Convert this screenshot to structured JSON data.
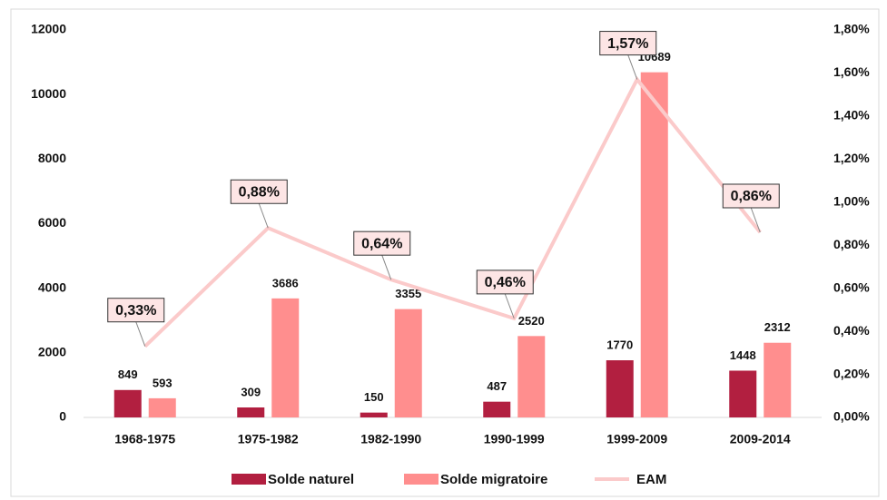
{
  "chart_data": {
    "type": "bar",
    "categories": [
      "1968-1975",
      "1975-1982",
      "1982-1990",
      "1990-1999",
      "1999-2009",
      "2009-2014"
    ],
    "series": [
      {
        "name": "Solde naturel",
        "color": "#b21f40",
        "values": [
          849,
          309,
          150,
          487,
          1770,
          1448
        ]
      },
      {
        "name": "Solde migratoire",
        "color": "#ff8e8e",
        "values": [
          593,
          3686,
          3355,
          2520,
          10689,
          2312
        ]
      },
      {
        "name": "EAM",
        "color": "#fbcaca",
        "type": "line",
        "axis": "y2",
        "values": [
          0.33,
          0.88,
          0.64,
          0.46,
          1.57,
          0.86
        ],
        "value_labels": [
          "0,33%",
          "0,88%",
          "0,64%",
          "0,46%",
          "1,57%",
          "0,86%"
        ]
      }
    ],
    "ylim": [
      0,
      12000
    ],
    "yticks": [
      0,
      2000,
      4000,
      6000,
      8000,
      10000,
      12000
    ],
    "y2lim": [
      0,
      1.8
    ],
    "y2ticks": [
      {
        "value": 0,
        "label": "0,00%"
      },
      {
        "value": 0.2,
        "label": "0,20%"
      },
      {
        "value": 0.4,
        "label": "0,40%"
      },
      {
        "value": 0.6,
        "label": "0,60%"
      },
      {
        "value": 0.8,
        "label": "0,80%"
      },
      {
        "value": 1.0,
        "label": "1,00%"
      },
      {
        "value": 1.2,
        "label": "1,20%"
      },
      {
        "value": 1.4,
        "label": "1,40%"
      },
      {
        "value": 1.6,
        "label": "1,60%"
      },
      {
        "value": 1.8,
        "label": "1,80%"
      }
    ],
    "grid": false,
    "legend": "bottom"
  }
}
